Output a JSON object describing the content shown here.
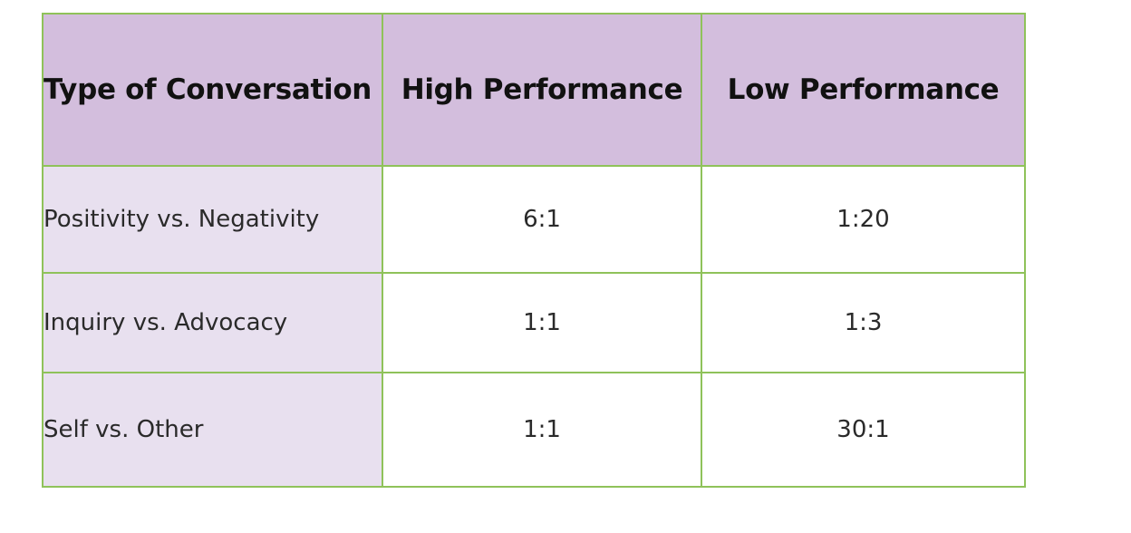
{
  "table": {
    "headers": [
      "Type of Conversation",
      "High Performance",
      "Low Performance"
    ],
    "rows": [
      {
        "type": "Positivity vs. Negativity",
        "high": "6:1",
        "low": "1:20"
      },
      {
        "type": "Inquiry vs. Advocacy",
        "high": "1:1",
        "low": "1:3"
      },
      {
        "type": "Self vs. Other",
        "high": "1:1",
        "low": "30:1"
      }
    ],
    "colors": {
      "header_bg": "#d3bedd",
      "label_bg": "#e8e0ef",
      "border": "#8fc25a"
    }
  }
}
